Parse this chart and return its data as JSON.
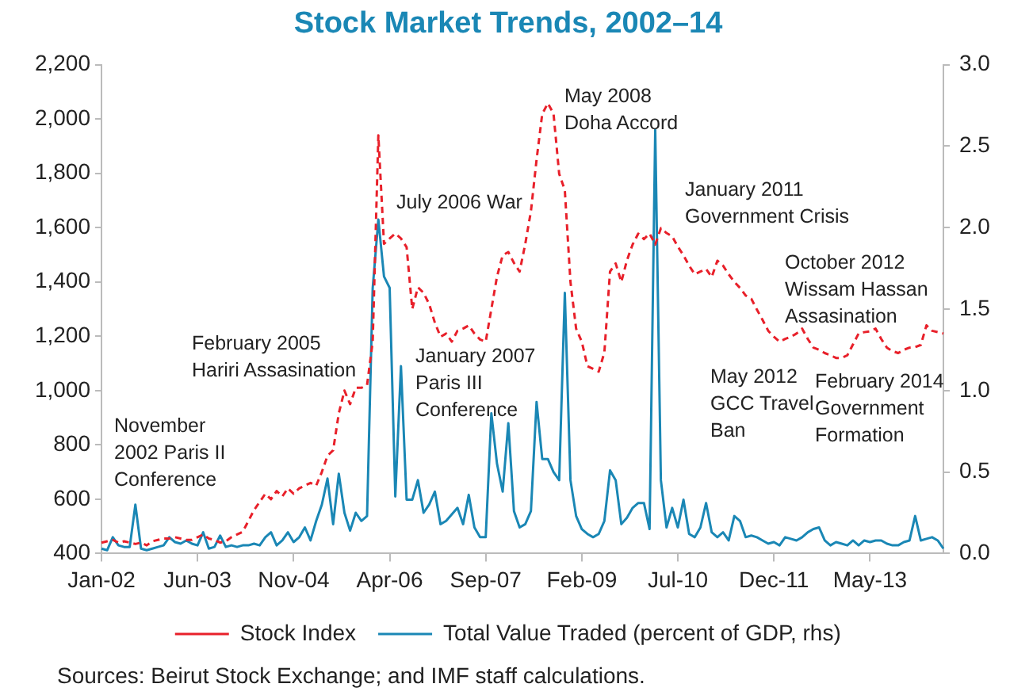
{
  "chart_data": {
    "type": "line",
    "title": "Stock Market Trends, 2002–14",
    "categories": [
      "Jan-02",
      null,
      null,
      null,
      null,
      null,
      null,
      null,
      null,
      null,
      null,
      null,
      null,
      null,
      null,
      null,
      null,
      "Jun-03",
      null,
      null,
      null,
      null,
      null,
      null,
      null,
      null,
      null,
      null,
      null,
      null,
      null,
      null,
      null,
      null,
      "Nov-04",
      null,
      null,
      null,
      null,
      null,
      null,
      null,
      null,
      null,
      null,
      null,
      null,
      null,
      null,
      null,
      null,
      "Apr-06",
      null,
      null,
      null,
      null,
      null,
      null,
      null,
      null,
      null,
      null,
      null,
      null,
      null,
      null,
      null,
      null,
      "Sep-07",
      null,
      null,
      null,
      null,
      null,
      null,
      null,
      null,
      null,
      null,
      null,
      null,
      null,
      null,
      null,
      null,
      "Feb-09",
      null,
      null,
      null,
      null,
      null,
      null,
      null,
      null,
      null,
      null,
      null,
      null,
      null,
      null,
      null,
      null,
      "Jul-10",
      null,
      null,
      null,
      null,
      null,
      null,
      null,
      null,
      null,
      null,
      null,
      null,
      null,
      null,
      null,
      null,
      "Dec-11",
      null,
      null,
      null,
      null,
      null,
      null,
      null,
      null,
      null,
      null,
      null,
      null,
      null,
      null,
      null,
      null,
      "May-13",
      null,
      null,
      null,
      null,
      null,
      null,
      null,
      null,
      null,
      null,
      null,
      null,
      null
    ],
    "series": [
      {
        "name": "Stock Index",
        "color": "#e8202a",
        "line_style": "dashed",
        "values": [
          440,
          445,
          450,
          440,
          445,
          440,
          435,
          440,
          430,
          445,
          450,
          455,
          455,
          460,
          455,
          450,
          450,
          460,
          470,
          455,
          450,
          440,
          445,
          460,
          470,
          480,
          520,
          560,
          590,
          620,
          600,
          630,
          610,
          640,
          620,
          640,
          650,
          660,
          650,
          700,
          760,
          780,
          916,
          1000,
          950,
          1010,
          1010,
          1020,
          1180,
          1940,
          1540,
          1560,
          1578,
          1560,
          1528,
          1300,
          1380,
          1360,
          1318,
          1250,
          1198,
          1210,
          1180,
          1220,
          1228,
          1240,
          1210,
          1188,
          1180,
          1300,
          1420,
          1498,
          1510,
          1470,
          1438,
          1540,
          1660,
          1850,
          2018,
          2058,
          2020,
          1798,
          1738,
          1400,
          1228,
          1180,
          1090,
          1080,
          1070,
          1140,
          1438,
          1468,
          1400,
          1480,
          1538,
          1578,
          1558,
          1578,
          1538,
          1598,
          1580,
          1568,
          1530,
          1498,
          1460,
          1428,
          1438,
          1448,
          1418,
          1478,
          1460,
          1428,
          1400,
          1378,
          1350,
          1338,
          1298,
          1260,
          1220,
          1198,
          1180,
          1190,
          1198,
          1210,
          1228,
          1190,
          1158,
          1150,
          1138,
          1130,
          1120,
          1120,
          1130,
          1170,
          1210,
          1215,
          1218,
          1228,
          1190,
          1158,
          1145,
          1138,
          1150,
          1158,
          1160,
          1168,
          1240,
          1220,
          1215,
          1210
        ]
      },
      {
        "name": "Total Value Traded (percent of GDP, rhs)",
        "color": "#1a87b5",
        "line_style": "solid",
        "axis": "y2",
        "values": [
          0.03,
          0.02,
          0.1,
          0.05,
          0.04,
          0.04,
          0.3,
          0.03,
          0.02,
          0.03,
          0.04,
          0.05,
          0.1,
          0.07,
          0.06,
          0.08,
          0.06,
          0.05,
          0.13,
          0.03,
          0.04,
          0.11,
          0.04,
          0.05,
          0.04,
          0.05,
          0.05,
          0.06,
          0.05,
          0.1,
          0.13,
          0.05,
          0.08,
          0.13,
          0.07,
          0.1,
          0.16,
          0.08,
          0.2,
          0.3,
          0.46,
          0.18,
          0.49,
          0.25,
          0.14,
          0.25,
          0.2,
          0.23,
          1.63,
          2.05,
          1.7,
          1.63,
          0.35,
          1.15,
          0.33,
          0.33,
          0.45,
          0.25,
          0.3,
          0.38,
          0.18,
          0.2,
          0.24,
          0.28,
          0.18,
          0.36,
          0.16,
          0.1,
          0.1,
          0.86,
          0.55,
          0.38,
          0.8,
          0.26,
          0.16,
          0.18,
          0.26,
          0.93,
          0.58,
          0.58,
          0.5,
          0.45,
          1.6,
          0.45,
          0.23,
          0.15,
          0.12,
          0.1,
          0.12,
          0.2,
          0.51,
          0.45,
          0.18,
          0.22,
          0.28,
          0.31,
          0.31,
          0.15,
          2.6,
          0.45,
          0.16,
          0.28,
          0.16,
          0.33,
          0.12,
          0.1,
          0.16,
          0.31,
          0.13,
          0.1,
          0.13,
          0.08,
          0.23,
          0.2,
          0.1,
          0.11,
          0.1,
          0.08,
          0.06,
          0.07,
          0.05,
          0.1,
          0.09,
          0.08,
          0.1,
          0.13,
          0.15,
          0.16,
          0.08,
          0.05,
          0.07,
          0.06,
          0.05,
          0.08,
          0.05,
          0.08,
          0.07,
          0.08,
          0.08,
          0.06,
          0.05,
          0.05,
          0.07,
          0.08,
          0.23,
          0.08,
          0.09,
          0.1,
          0.08,
          0.03
        ]
      }
    ],
    "ylim": [
      400,
      2200
    ],
    "yticks": [
      {
        "value": 400,
        "label": "400"
      },
      {
        "value": 600,
        "label": "600"
      },
      {
        "value": 800,
        "label": "800"
      },
      {
        "value": 1000,
        "label": "1,000"
      },
      {
        "value": 1200,
        "label": "1,200"
      },
      {
        "value": 1400,
        "label": "1,400"
      },
      {
        "value": 1600,
        "label": "1,600"
      },
      {
        "value": 1800,
        "label": "1,800"
      },
      {
        "value": 2000,
        "label": "2,000"
      },
      {
        "value": 2200,
        "label": "2,200"
      }
    ],
    "y2lim": [
      0,
      3
    ],
    "y2ticks": [
      {
        "value": 0,
        "label": "0.0"
      },
      {
        "value": 0.5,
        "label": "0.5"
      },
      {
        "value": 1,
        "label": "1.0"
      },
      {
        "value": 1.5,
        "label": "1.5"
      },
      {
        "value": 2,
        "label": "2.0"
      },
      {
        "value": 2.5,
        "label": "2.5"
      },
      {
        "value": 3,
        "label": "3.0"
      }
    ],
    "grid": false,
    "legend": "bottom",
    "marker": "none",
    "annotations": [
      "November\n2002 Paris II\nConference",
      "February 2005\nHariri Assasination",
      "July 2006 War",
      "January 2007\nParis III\nConference",
      "May 2008\nDoha Accord",
      "January 2011\nGovernment Crisis",
      "May 2012\nGCC Travel\nBan",
      "October 2012\nWissam Hassan\nAssasination",
      "February 2014\nGovernment\nFormation",
      "Sources: Beirut Stock Exchange; and IMF staff calculations."
    ]
  }
}
